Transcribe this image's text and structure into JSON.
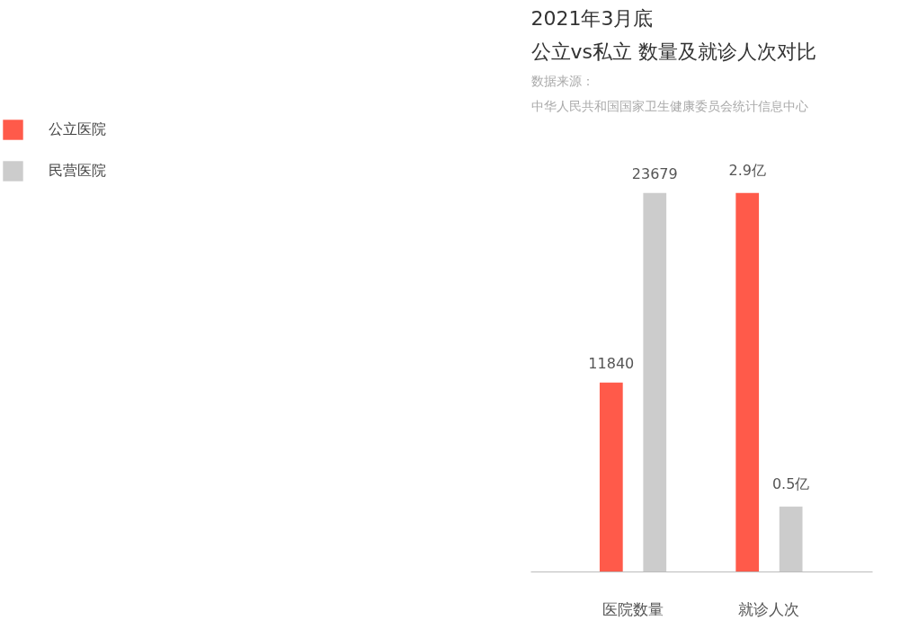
{
  "chart_data": {
    "type": "bar",
    "title": "2021年3月底",
    "subtitle": "公立vs私立 数量及就诊人次对比",
    "annotations": [
      "数据来源：",
      "中华人民共和国国家卫生健康委员会统计信息中心"
    ],
    "categories": [
      "医院数量",
      "就诊人次"
    ],
    "series": [
      {
        "name": "公立医院",
        "color": "#ff5a4a",
        "values": [
          11840,
          null
        ],
        "value_labels": [
          "11840",
          null
        ]
      },
      {
        "name": "民营医院",
        "color": "#cccccc",
        "values": [
          23679,
          null
        ],
        "value_labels": [
          "23679",
          null
        ]
      },
      {
        "color": "#ff5a4a",
        "axis": "y2",
        "values": [
          null,
          2.9
        ],
        "value_labels": [
          null,
          "2.9亿"
        ]
      },
      {
        "color": "#cccccc",
        "axis": "y2",
        "values": [
          null,
          0.5
        ],
        "value_labels": [
          null,
          "0.5亿"
        ]
      }
    ],
    "legend": "top left",
    "grid": false
  }
}
